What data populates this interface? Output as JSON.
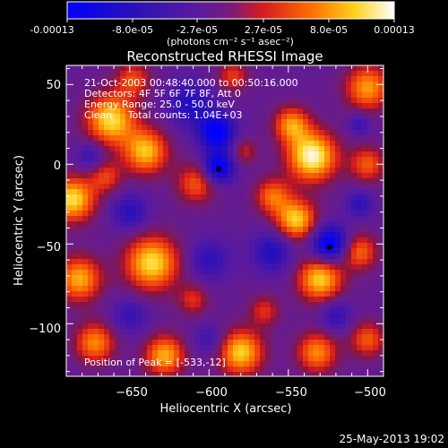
{
  "chart_data": {
    "type": "heatmap",
    "title": "Reconstructed RHESSI Image",
    "xlabel": "Heliocentric X (arcsec)",
    "ylabel": "Heliocentric Y (arcsec)",
    "xlim": [
      -690,
      -490
    ],
    "ylim": [
      -133,
      62
    ],
    "x_ticks": [
      -650,
      -600,
      -550,
      -500
    ],
    "y_ticks": [
      50,
      0,
      -50,
      -100
    ],
    "colorbar": {
      "tick_labels": [
        "-0.00013",
        "-8.0e-05",
        "-2.7e-05",
        "2.7e-05",
        "8.0e-05",
        "0.00013"
      ],
      "label": "(photons cm⁻² s⁻¹ asec⁻²)",
      "range": [
        -0.00013,
        0.00013
      ]
    },
    "info_lines": [
      "21-Oct-2003 00:48:40.000 to 00:50:16.000",
      "Detectors: 4F 5F 6F 7F 8F, Att 0",
      "Energy Range: 25.0 - 50.0 keV",
      "Clean     Total counts: 1.04E+03"
    ],
    "peak_label": "Position of Peak = [-533,-12]",
    "peak_position": [
      -533,
      -12
    ],
    "markers": [
      [
        -594,
        -3
      ],
      [
        -524,
        -52
      ]
    ],
    "grid": false,
    "colormap": "blue-purple-red-yellow-white",
    "image_blobs": [
      {
        "x": -662,
        "y": 28,
        "s": 11,
        "a": 1.0
      },
      {
        "x": -640,
        "y": 8,
        "s": 10,
        "a": 0.9
      },
      {
        "x": -648,
        "y": 53,
        "s": 8,
        "a": 0.55
      },
      {
        "x": -686,
        "y": -22,
        "s": 10,
        "a": 1.0
      },
      {
        "x": -665,
        "y": -8,
        "s": 7,
        "a": 0.5
      },
      {
        "x": -636,
        "y": -62,
        "s": 12,
        "a": 1.0
      },
      {
        "x": -682,
        "y": -72,
        "s": 10,
        "a": 0.85
      },
      {
        "x": -672,
        "y": -112,
        "s": 9,
        "a": 0.75
      },
      {
        "x": -628,
        "y": -120,
        "s": 9,
        "a": 0.85
      },
      {
        "x": -608,
        "y": -12,
        "s": 9,
        "a": 0.6
      },
      {
        "x": -610,
        "y": -85,
        "s": 7,
        "a": 0.45
      },
      {
        "x": -585,
        "y": 55,
        "s": 7,
        "a": 0.5
      },
      {
        "x": -578,
        "y": 8,
        "s": 6,
        "a": 0.4
      },
      {
        "x": -560,
        "y": -20,
        "s": 8,
        "a": 0.65
      },
      {
        "x": -548,
        "y": 25,
        "s": 8,
        "a": 0.75
      },
      {
        "x": -535,
        "y": 5,
        "s": 11,
        "a": 1.15
      },
      {
        "x": -545,
        "y": -35,
        "s": 9,
        "a": 0.95
      },
      {
        "x": -530,
        "y": -72,
        "s": 10,
        "a": 0.95
      },
      {
        "x": -505,
        "y": -55,
        "s": 8,
        "a": 0.65
      },
      {
        "x": -500,
        "y": 48,
        "s": 10,
        "a": 0.8
      },
      {
        "x": -500,
        "y": 0,
        "s": 8,
        "a": 0.6
      },
      {
        "x": -580,
        "y": -118,
        "s": 10,
        "a": 0.95
      },
      {
        "x": -532,
        "y": -118,
        "s": 9,
        "a": 0.75
      },
      {
        "x": -500,
        "y": -110,
        "s": 8,
        "a": 0.6
      },
      {
        "x": -565,
        "y": -92,
        "s": 7,
        "a": 0.45
      },
      {
        "x": -595,
        "y": 20,
        "s": 8,
        "a": -0.95
      },
      {
        "x": -594,
        "y": -2,
        "s": 7,
        "a": -0.95
      },
      {
        "x": -524,
        "y": -50,
        "s": 8,
        "a": -1.0
      },
      {
        "x": -612,
        "y": 38,
        "s": 10,
        "a": -0.55
      },
      {
        "x": -560,
        "y": -55,
        "s": 9,
        "a": -0.55
      },
      {
        "x": -650,
        "y": -30,
        "s": 8,
        "a": -0.5
      },
      {
        "x": -505,
        "y": -25,
        "s": 6,
        "a": -0.45
      },
      {
        "x": -505,
        "y": 25,
        "s": 5,
        "a": -0.4
      },
      {
        "x": -600,
        "y": -60,
        "s": 9,
        "a": -0.45
      },
      {
        "x": -650,
        "y": -95,
        "s": 8,
        "a": -0.4
      },
      {
        "x": -520,
        "y": -95,
        "s": 7,
        "a": -0.45
      },
      {
        "x": -675,
        "y": 5,
        "s": 6,
        "a": -0.4
      },
      {
        "x": -600,
        "y": -110,
        "s": 7,
        "a": -0.35
      }
    ]
  },
  "footer": {
    "timestamp": "25-May-2013 19:02"
  }
}
